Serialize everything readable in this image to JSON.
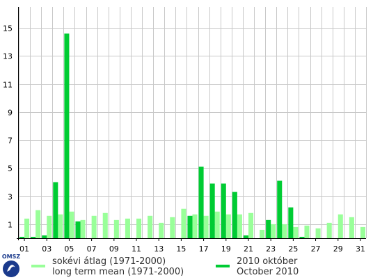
{
  "chart_data": {
    "type": "bar",
    "categories": [
      "01",
      "02",
      "03",
      "04",
      "05",
      "06",
      "07",
      "08",
      "09",
      "10",
      "11",
      "12",
      "13",
      "14",
      "15",
      "16",
      "17",
      "18",
      "19",
      "20",
      "21",
      "22",
      "23",
      "24",
      "25",
      "26",
      "27",
      "28",
      "29",
      "30",
      "31"
    ],
    "x_tick_labels": [
      "01",
      "03",
      "05",
      "07",
      "09",
      "11",
      "13",
      "15",
      "17",
      "19",
      "21",
      "23",
      "25",
      "27",
      "29",
      "31"
    ],
    "y_tick_labels": [
      "1",
      "3",
      "5",
      "7",
      "9",
      "11",
      "13",
      "15"
    ],
    "ylim": [
      0,
      16.5
    ],
    "grid": true,
    "series": [
      {
        "name_lines": [
          "sokévi átlag (1971-2000)",
          "long term mean (1971-2000)"
        ],
        "color": "#99ff99",
        "values": [
          1.4,
          2.0,
          1.6,
          1.7,
          1.9,
          1.3,
          1.6,
          1.8,
          1.3,
          1.4,
          1.4,
          1.6,
          1.1,
          1.5,
          2.1,
          1.7,
          1.6,
          1.9,
          1.7,
          1.7,
          1.8,
          0.6,
          1.0,
          1.0,
          0.8,
          0.9,
          0.7,
          1.1,
          1.7,
          1.5,
          0.8
        ]
      },
      {
        "name_lines": [
          "2010 október",
          "October 2010"
        ],
        "color": "#00cc33",
        "values": [
          0.1,
          0.1,
          0.2,
          4.0,
          14.6,
          1.2,
          0,
          0,
          0,
          0,
          0,
          0,
          0,
          0,
          0,
          1.6,
          5.1,
          3.9,
          3.9,
          3.3,
          0.2,
          0,
          1.3,
          4.1,
          2.2,
          0.1,
          0,
          0,
          0,
          0,
          0
        ]
      }
    ],
    "legend_position": "bottom",
    "logo_text": "OMSZ"
  }
}
